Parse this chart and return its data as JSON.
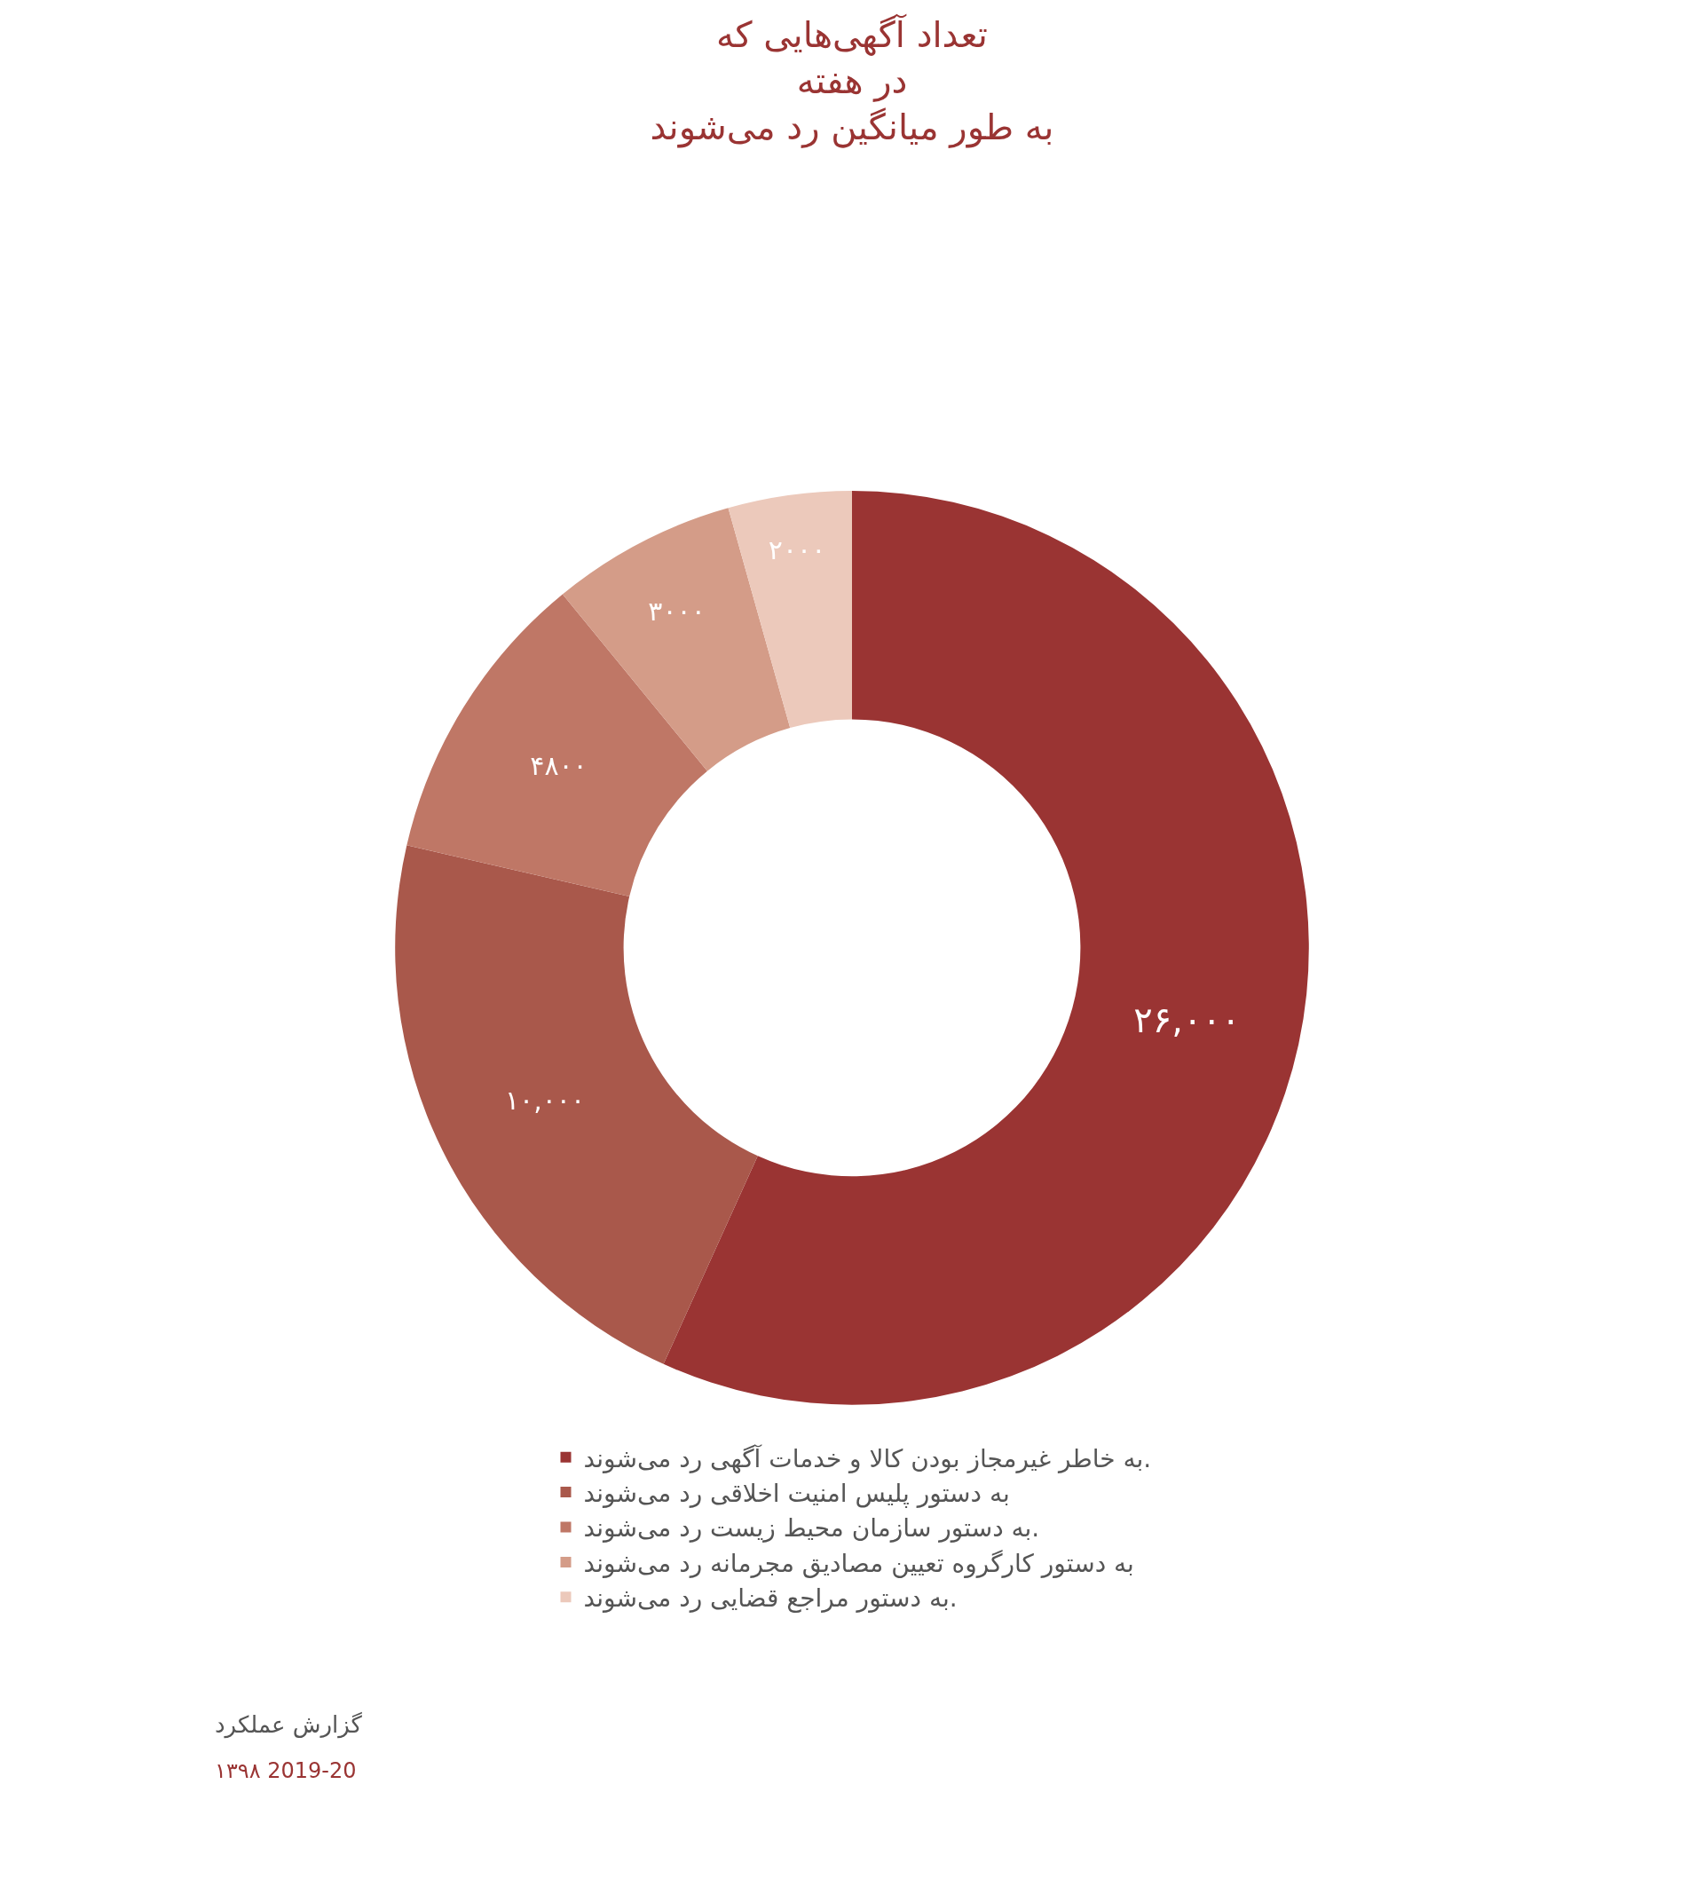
{
  "chart_data": {
    "type": "donut",
    "title": "تعداد آگهی‌هایی که\nدر هفته\nبه طور میانگین رد می‌شوند",
    "categories": [
      "به خاطر غیرمجاز بودن کالا و خدمات آگهی رد می‌شوند.",
      "به دستور پلیس امنیت اخلاقی رد می‌شوند",
      "به دستور سازمان محیط زیست رد می‌شوند.",
      "به دستور کارگروه تعیین مصادیق مجرمانه رد می‌شوند",
      "به دستور مراجع قضایی رد می‌شوند."
    ],
    "values": [
      26000,
      10000,
      4800,
      3000,
      2000
    ],
    "value_labels": [
      "۲۶,۰۰۰",
      "۱۰,۰۰۰",
      "۴۸۰۰",
      "۳۰۰۰",
      "۲۰۰۰"
    ],
    "colors": [
      "#9a3433",
      "#a9584b",
      "#bf7766",
      "#d49c88",
      "#ecc9bb"
    ],
    "legend": "bottom",
    "annotations": [
      "گزارش عملکرد",
      "۱۳۹۸ 2019-20"
    ]
  }
}
